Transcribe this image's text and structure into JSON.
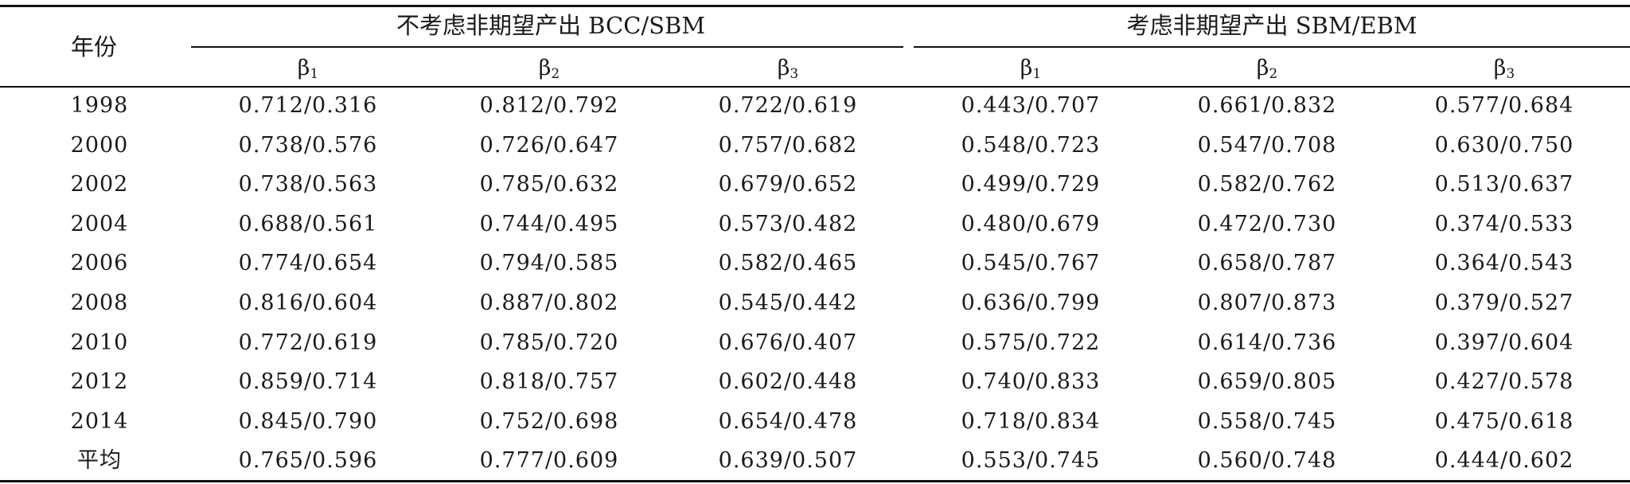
{
  "table": {
    "corner_header": "年份",
    "group_headers": [
      "不考虑非期望产出 BCC/SBM",
      "考虑非期望产出 SBM/EBM"
    ],
    "sub_headers": [
      {
        "base": "β",
        "sub": "1"
      },
      {
        "base": "β",
        "sub": "2"
      },
      {
        "base": "β",
        "sub": "3"
      },
      {
        "base": "β",
        "sub": "1"
      },
      {
        "base": "β",
        "sub": "2"
      },
      {
        "base": "β",
        "sub": "3"
      }
    ],
    "rows": [
      {
        "year": "1998",
        "cells": [
          "0.712/0.316",
          "0.812/0.792",
          "0.722/0.619",
          "0.443/0.707",
          "0.661/0.832",
          "0.577/0.684"
        ]
      },
      {
        "year": "2000",
        "cells": [
          "0.738/0.576",
          "0.726/0.647",
          "0.757/0.682",
          "0.548/0.723",
          "0.547/0.708",
          "0.630/0.750"
        ]
      },
      {
        "year": "2002",
        "cells": [
          "0.738/0.563",
          "0.785/0.632",
          "0.679/0.652",
          "0.499/0.729",
          "0.582/0.762",
          "0.513/0.637"
        ]
      },
      {
        "year": "2004",
        "cells": [
          "0.688/0.561",
          "0.744/0.495",
          "0.573/0.482",
          "0.480/0.679",
          "0.472/0.730",
          "0.374/0.533"
        ]
      },
      {
        "year": "2006",
        "cells": [
          "0.774/0.654",
          "0.794/0.585",
          "0.582/0.465",
          "0.545/0.767",
          "0.658/0.787",
          "0.364/0.543"
        ]
      },
      {
        "year": "2008",
        "cells": [
          "0.816/0.604",
          "0.887/0.802",
          "0.545/0.442",
          "0.636/0.799",
          "0.807/0.873",
          "0.379/0.527"
        ]
      },
      {
        "year": "2010",
        "cells": [
          "0.772/0.619",
          "0.785/0.720",
          "0.676/0.407",
          "0.575/0.722",
          "0.614/0.736",
          "0.397/0.604"
        ]
      },
      {
        "year": "2012",
        "cells": [
          "0.859/0.714",
          "0.818/0.757",
          "0.602/0.448",
          "0.740/0.833",
          "0.659/0.805",
          "0.427/0.578"
        ]
      },
      {
        "year": "2014",
        "cells": [
          "0.845/0.790",
          "0.752/0.698",
          "0.654/0.478",
          "0.718/0.834",
          "0.558/0.745",
          "0.475/0.618"
        ]
      },
      {
        "year": "平均",
        "cells": [
          "0.765/0.596",
          "0.777/0.609",
          "0.639/0.507",
          "0.553/0.745",
          "0.560/0.748",
          "0.444/0.602"
        ]
      }
    ]
  }
}
